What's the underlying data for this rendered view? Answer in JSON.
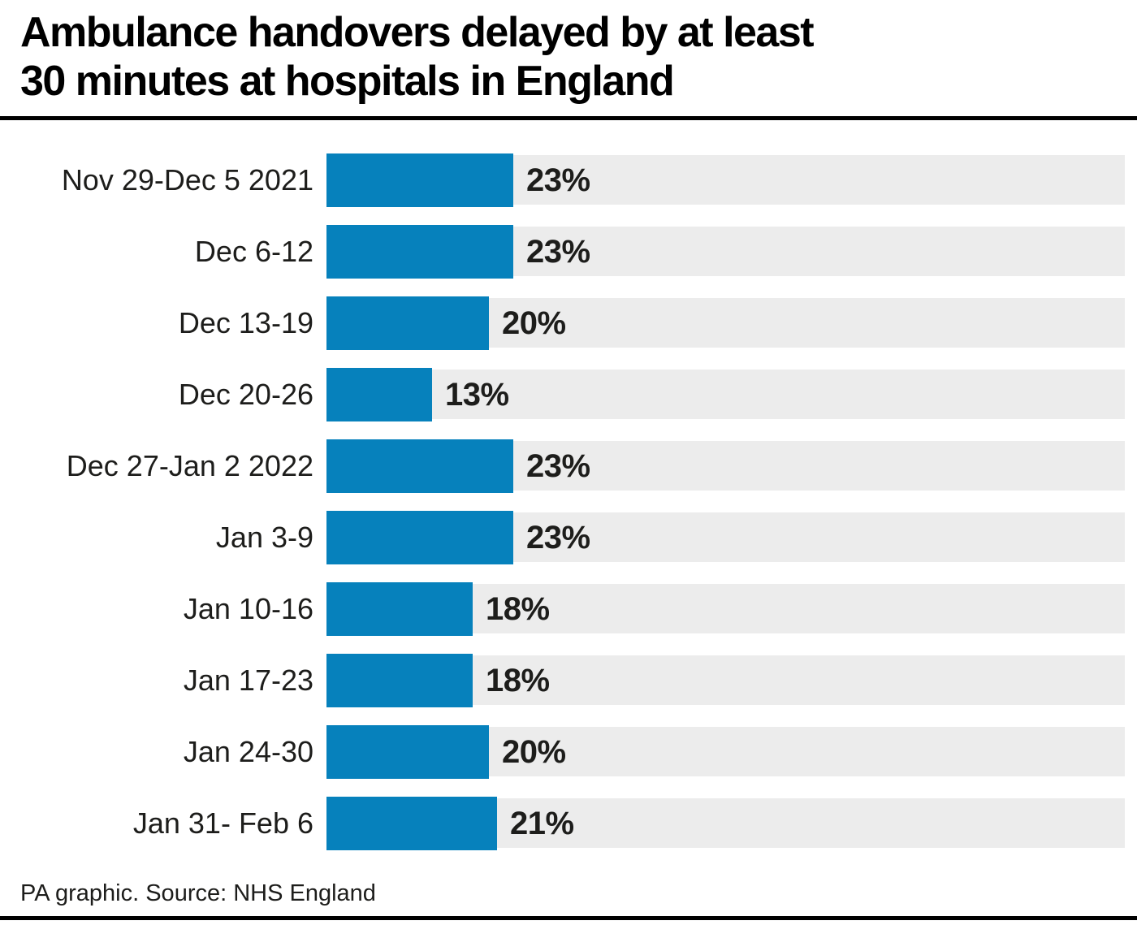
{
  "title": {
    "line1": "Ambulance handovers delayed by at least",
    "line2": "30 minutes at hospitals in England"
  },
  "footer": {
    "source_text": "PA graphic. Source: NHS England"
  },
  "colors": {
    "bar": "#0681bc",
    "track": "#ececec",
    "text": "#1d1d1b",
    "rule": "#000000"
  },
  "chart_data": {
    "type": "bar",
    "orientation": "horizontal",
    "title": "Ambulance handovers delayed by at least 30 minutes at hospitals in England",
    "categories": [
      "Nov 29-Dec 5 2021",
      "Dec 6-12",
      "Dec 13-19",
      "Dec 20-26",
      "Dec 27-Jan 2 2022",
      "Jan 3-9",
      "Jan 10-16",
      "Jan 17-23",
      "Jan 24-30",
      "Jan 31- Feb 6"
    ],
    "values": [
      23,
      23,
      20,
      13,
      23,
      23,
      18,
      18,
      20,
      21
    ],
    "data_labels": [
      "23%",
      "23%",
      "20%",
      "13%",
      "23%",
      "23%",
      "18%",
      "18%",
      "20%",
      "21%"
    ],
    "xlabel": "",
    "ylabel": "",
    "xlim": [
      0,
      98
    ],
    "grid": false,
    "legend": false,
    "track_background": true
  }
}
